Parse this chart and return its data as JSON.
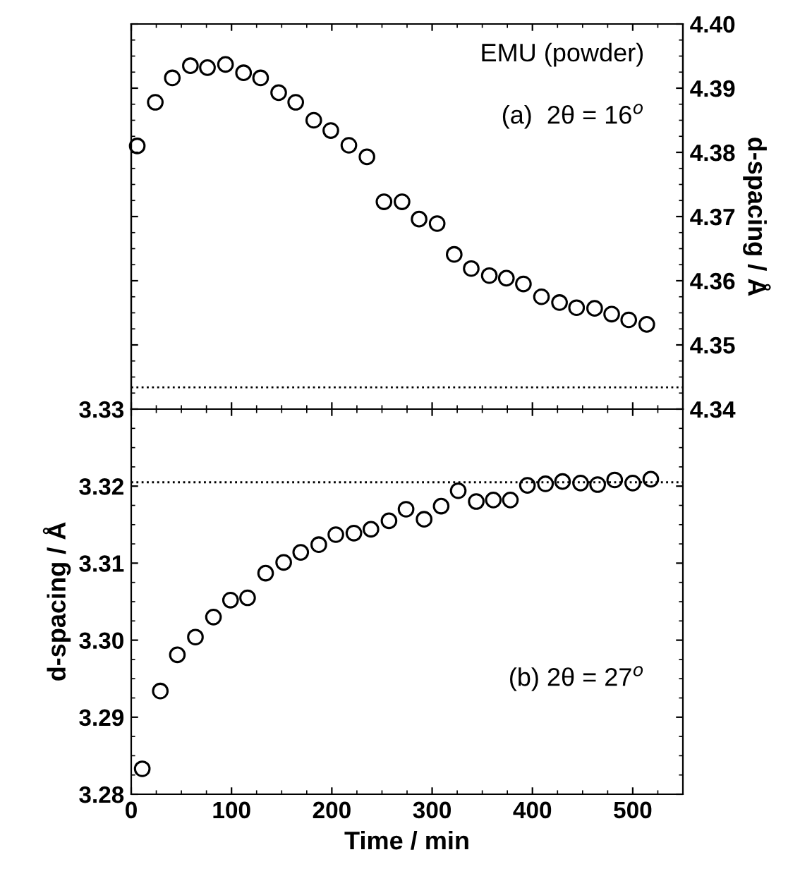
{
  "chart_data": [
    {
      "type": "scatter",
      "marker": "circle",
      "tick_labels": "y",
      "y2label": "d-spacing / Å",
      "annotations": [
        "EMU (powder)",
        "(a)  2θ = 16$^{o}$"
      ],
      "xlim": [
        0,
        550
      ],
      "xticks": [
        0,
        100,
        200,
        300,
        400,
        500
      ],
      "y2lim": [
        4.34,
        4.4
      ],
      "y2ticks": [
        4.34,
        4.35,
        4.36,
        4.37,
        4.38,
        4.39,
        {
          "value": 4.4,
          "label": "4.40"
        }
      ],
      "ref_lines": [
        {
          "axis": "y2",
          "value": 4.3434,
          "line_style": "dotted",
          "color": "#000000"
        }
      ],
      "x": [
        6,
        24,
        41,
        59,
        76,
        94,
        112,
        129,
        147,
        164,
        182,
        199,
        217,
        235,
        252,
        270,
        287,
        305,
        322,
        339,
        357,
        374,
        391,
        409,
        427,
        444,
        462,
        479,
        496,
        514
      ],
      "series": [
        {
          "axis": "y2",
          "color": "#000000",
          "values": [
            4.381,
            4.3878,
            4.3916,
            4.3935,
            4.3932,
            4.3937,
            4.3924,
            4.3916,
            4.3893,
            4.3878,
            4.385,
            4.3834,
            4.3811,
            4.3793,
            4.3723,
            4.3723,
            4.3696,
            4.3689,
            4.3641,
            4.3619,
            4.3608,
            4.3604,
            4.3595,
            4.3575,
            4.3566,
            4.3558,
            4.3557,
            4.3548,
            4.3539,
            4.3532
          ]
        }
      ]
    },
    {
      "type": "scatter",
      "marker": "circle",
      "xlabel": "Time / min",
      "ylabel": "d-spacing / Å",
      "annotations": [
        "(b) 2θ = 27$^{o}$"
      ],
      "xlim": [
        0,
        550
      ],
      "xticks": [
        0,
        100,
        200,
        300,
        400,
        500
      ],
      "ylim": [
        3.28,
        3.33
      ],
      "yticks": [
        3.28,
        3.29,
        {
          "value": 3.3,
          "label": "3.30"
        },
        3.31,
        3.32,
        3.33
      ],
      "ref_lines": [
        {
          "axis": "y",
          "value": 3.3205,
          "line_style": "dotted",
          "color": "#000000"
        }
      ],
      "x": [
        11,
        29,
        46,
        64,
        82,
        99,
        116,
        134,
        152,
        169,
        187,
        204,
        222,
        239,
        257,
        274,
        292,
        309,
        326,
        344,
        361,
        378,
        395,
        413,
        430,
        448,
        465,
        482,
        500,
        518
      ],
      "series": [
        {
          "color": "#000000",
          "values": [
            3.2833,
            3.2934,
            3.2981,
            3.3004,
            3.303,
            3.3052,
            3.3055,
            3.3087,
            3.3101,
            3.3114,
            3.3124,
            3.3137,
            3.3139,
            3.3144,
            3.3155,
            3.317,
            3.3157,
            3.3174,
            3.3194,
            3.318,
            3.3182,
            3.3182,
            3.3201,
            3.3203,
            3.3206,
            3.3204,
            3.3202,
            3.3208,
            3.3204,
            3.3209
          ]
        }
      ]
    }
  ]
}
